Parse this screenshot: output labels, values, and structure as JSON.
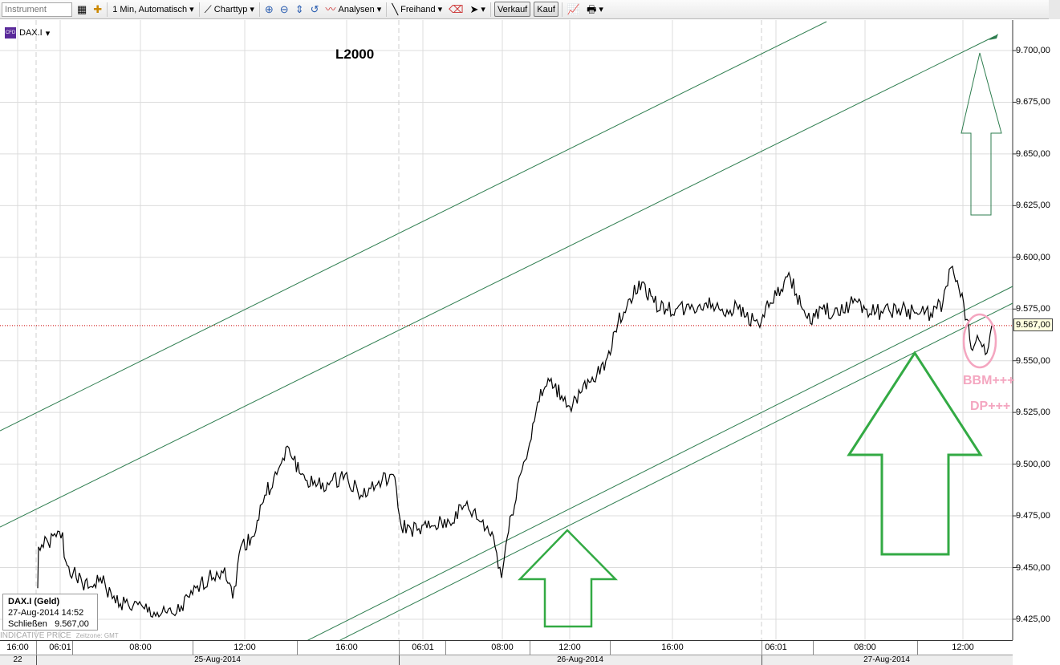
{
  "toolbar": {
    "instrument_placeholder": "Instrument",
    "interval": "1 Min,  Automatisch",
    "charttype": "Charttyp",
    "analysen": "Analysen",
    "freihand": "Freihand",
    "verkauf": "Verkauf",
    "kauf": "Kauf"
  },
  "symbol": {
    "name": "DAX.I",
    "icon_text": "CFD"
  },
  "annotations": {
    "title": "L2000",
    "bbm": "BBM+++",
    "dp": "DP+++"
  },
  "infobox": {
    "title": "DAX.I (Geld)",
    "datetime": "27-Aug-2014 14:52",
    "close_label": "Schließen",
    "close_value": "9.567,00"
  },
  "indicative": {
    "label": "INDICATIVE PRICE",
    "zone": "Zeitzone: GMT"
  },
  "price_tag": "9.567,00",
  "colors": {
    "trendline": "#2e7d4f",
    "arrow": "#33aa44",
    "annotation": "#f4a6c0",
    "refline": "#cc0000"
  },
  "chart_data": {
    "type": "line",
    "symbol": "DAX.I",
    "ylim": [
      9412,
      9720
    ],
    "y_ticks": [
      "9.700,00",
      "9.675,00",
      "9.650,00",
      "9.625,00",
      "9.600,00",
      "9.575,00",
      "9.550,00",
      "9.525,00",
      "9.500,00",
      "9.475,00",
      "9.450,00",
      "9.425,00"
    ],
    "y_tick_values": [
      9700,
      9675,
      9650,
      9625,
      9600,
      9575,
      9550,
      9525,
      9500,
      9475,
      9450,
      9425
    ],
    "x_time_labels": [
      "16:00",
      "06:01",
      "08:00",
      "12:00",
      "16:00",
      "06:01",
      "08:00",
      "12:00",
      "16:00",
      "06:01",
      "08:00",
      "12:00"
    ],
    "x_date_labels": [
      "22",
      "25-Aug-2014",
      "26-Aug-2014",
      "27-Aug-2014"
    ],
    "last_price": 9567,
    "prices": [
      9440,
      9460,
      9462,
      9467,
      9455,
      9445,
      9440,
      9445,
      9435,
      9432,
      9430,
      9427,
      9428,
      9437,
      9445,
      9450,
      9435,
      9460,
      9465,
      9485,
      9495,
      9508,
      9495,
      9490,
      9490,
      9495,
      9485,
      9490,
      9495,
      9470,
      9468,
      9470,
      9472,
      9480,
      9472,
      9465,
      9445,
      9460,
      9490,
      9510,
      9530,
      9540,
      9533,
      9528,
      9535,
      9540,
      9550,
      9568,
      9580,
      9588,
      9578,
      9575,
      9575,
      9578,
      9575,
      9575,
      9568,
      9578,
      9590,
      9575,
      9568,
      9575,
      9572,
      9580,
      9575,
      9573,
      9575,
      9573,
      9573,
      9578,
      9595,
      9585,
      9570,
      9555,
      9560,
      9553,
      9567
    ]
  }
}
